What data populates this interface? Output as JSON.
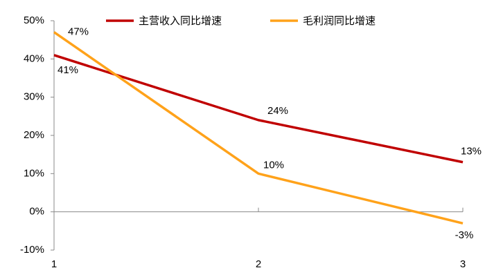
{
  "chart_data": {
    "type": "line",
    "x": [
      1,
      2,
      3
    ],
    "xlim": [
      1,
      3
    ],
    "xticks": [
      1,
      2,
      3
    ],
    "ylim": [
      -10,
      50
    ],
    "yticks": [
      {
        "value": -10,
        "label": "-10%"
      },
      {
        "value": 0,
        "label": "0%"
      },
      {
        "value": 10,
        "label": "10%"
      },
      {
        "value": 20,
        "label": "20%"
      },
      {
        "value": 30,
        "label": "30%"
      },
      {
        "value": 40,
        "label": "40%"
      },
      {
        "value": 50,
        "label": "50%"
      }
    ],
    "grid": false,
    "legend": "top",
    "series": [
      {
        "name": "主营收入同比增速",
        "color": "#c00000",
        "values": [
          41,
          24,
          13
        ],
        "value_labels": [
          "41%",
          "24%",
          "13%"
        ]
      },
      {
        "name": "毛利润同比增速",
        "color": "#ffa21a",
        "values": [
          47,
          10,
          -3
        ],
        "value_labels": [
          "47%",
          "10%",
          "-3%"
        ]
      }
    ]
  }
}
